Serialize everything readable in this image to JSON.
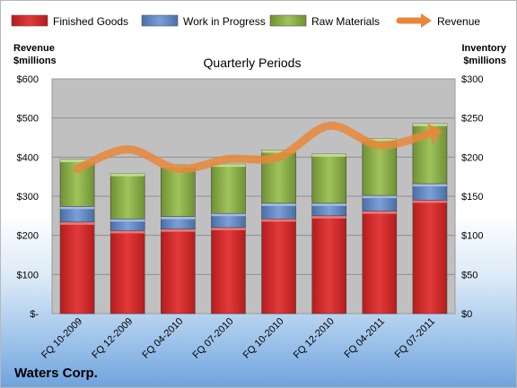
{
  "chart_data": {
    "type": "bar",
    "stacked": true,
    "title": "Quarterly Periods",
    "company": "Waters Corp.",
    "categories": [
      "FQ 10-2009",
      "FQ 12-2009",
      "FQ 04-2010",
      "FQ 07-2010",
      "FQ 10-2010",
      "FQ 12-2010",
      "FQ 04-2011",
      "FQ 07-2011"
    ],
    "series": [
      {
        "name": "Finished Goods",
        "axis": "right",
        "color": "#d62b2b",
        "values": [
          117,
          106,
          108,
          110,
          121,
          125,
          131,
          145
        ]
      },
      {
        "name": "Work in Progress",
        "axis": "right",
        "color": "#5f87c4",
        "values": [
          20,
          15,
          16,
          18,
          20,
          16,
          20,
          21
        ]
      },
      {
        "name": "Raw Materials",
        "axis": "right",
        "color": "#8db04a",
        "values": [
          60,
          58,
          66,
          63,
          68,
          63,
          73,
          77
        ]
      }
    ],
    "line_series": {
      "name": "Revenue",
      "axis": "left",
      "color": "#e8873a",
      "values": [
        370,
        420,
        370,
        395,
        400,
        480,
        430,
        460
      ]
    },
    "left_axis": {
      "label": "Revenue\n$millions",
      "ylim": [
        0,
        600
      ],
      "ticks": [
        0,
        100,
        200,
        300,
        400,
        500,
        600
      ],
      "tick_labels": [
        "$-",
        "$100",
        "$200",
        "$300",
        "$400",
        "$500",
        "$600"
      ]
    },
    "right_axis": {
      "label": "Inventory\n$millions",
      "ylim": [
        0,
        300
      ],
      "ticks": [
        0,
        50,
        100,
        150,
        200,
        250,
        300
      ],
      "tick_labels": [
        "$0",
        "$50",
        "$100",
        "$150",
        "$200",
        "$250",
        "$300"
      ]
    },
    "legend": {
      "position": "top",
      "entries": [
        "Finished Goods",
        "Work in Progress",
        "Raw Materials",
        "Revenue"
      ]
    },
    "grid": true,
    "plot_background": "#c0c0c0"
  }
}
